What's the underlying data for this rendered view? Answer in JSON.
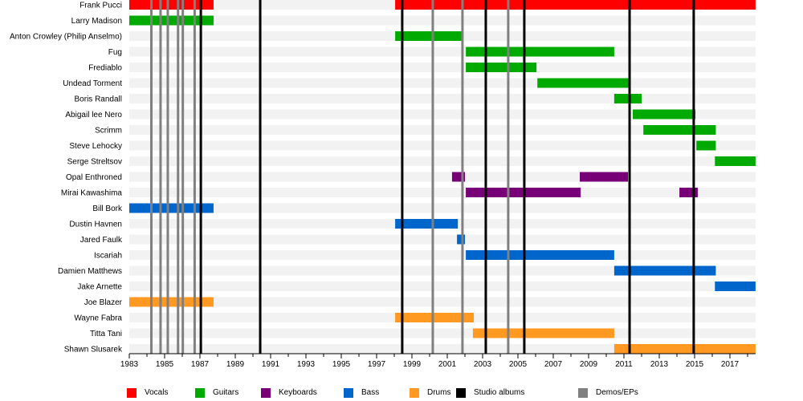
{
  "chart_data": {
    "type": "timeline",
    "title": "",
    "xlim": [
      1983,
      2018.45
    ],
    "x_ticks": [
      1983,
      1985,
      1987,
      1989,
      1991,
      1993,
      1995,
      1997,
      1999,
      2001,
      2003,
      2005,
      2007,
      2009,
      2011,
      2013,
      2015,
      2017
    ],
    "x_tick_labels": [
      "1983",
      "1985",
      "1987",
      "1989",
      "1991",
      "1993",
      "1995",
      "1997",
      "1999",
      "2001",
      "2003",
      "2005",
      "2007",
      "2009",
      "2011",
      "2013",
      "2015",
      "2017"
    ],
    "roles": {
      "vocals": {
        "label": "Vocals",
        "color": "#ff0000"
      },
      "guitars": {
        "label": "Guitars",
        "color": "#00aa00"
      },
      "keyboards": {
        "label": "Keyboards",
        "color": "#770077"
      },
      "bass": {
        "label": "Bass",
        "color": "#0066cc"
      },
      "drums": {
        "label": "Drums",
        "color": "#ff9922"
      },
      "studio": {
        "label": "Studio albums",
        "color": "#000000"
      },
      "demos": {
        "label": "Demos/EPs",
        "color": "#808080"
      }
    },
    "legend": [
      "vocals",
      "guitars",
      "keyboards",
      "bass",
      "drums",
      "studio",
      "demos"
    ],
    "members": [
      {
        "name": "Frank Pucci",
        "role": "vocals",
        "periods": [
          [
            1983,
            1987.77
          ],
          [
            1998.05,
            2018.45
          ]
        ]
      },
      {
        "name": "Larry Madison",
        "role": "guitars",
        "periods": [
          [
            1983,
            1987.77
          ]
        ]
      },
      {
        "name": "Anton Crowley (Philip Anselmo)",
        "role": "guitars",
        "periods": [
          [
            1998.05,
            2001.91
          ]
        ]
      },
      {
        "name": "Fug",
        "role": "guitars",
        "periods": [
          [
            2002.05,
            2010.45
          ]
        ]
      },
      {
        "name": "Frediablo",
        "role": "guitars",
        "periods": [
          [
            2002.05,
            2006.05
          ]
        ]
      },
      {
        "name": "Undead Torment",
        "role": "guitars",
        "periods": [
          [
            2006.1,
            2011.35
          ]
        ]
      },
      {
        "name": "Boris Randall",
        "role": "guitars",
        "periods": [
          [
            2010.45,
            2012.0
          ]
        ]
      },
      {
        "name": "Abigail lee Nero",
        "role": "guitars",
        "periods": [
          [
            2011.5,
            2015.05
          ]
        ]
      },
      {
        "name": "Scrimm",
        "role": "guitars",
        "periods": [
          [
            2012.1,
            2016.2
          ]
        ]
      },
      {
        "name": "Steve Lehocky",
        "role": "guitars",
        "periods": [
          [
            2015.1,
            2016.2
          ]
        ]
      },
      {
        "name": "Serge Streltsov",
        "role": "guitars",
        "periods": [
          [
            2016.15,
            2018.45
          ]
        ]
      },
      {
        "name": "Opal Enthroned",
        "role": "keyboards",
        "periods": [
          [
            2001.27,
            2002.0
          ],
          [
            2008.5,
            2011.23
          ]
        ]
      },
      {
        "name": "Mirai Kawashima",
        "role": "keyboards",
        "periods": [
          [
            2002.05,
            2008.55
          ],
          [
            2014.14,
            2015.18
          ]
        ]
      },
      {
        "name": "Bill Bork",
        "role": "bass",
        "periods": [
          [
            1983,
            1987.77
          ]
        ]
      },
      {
        "name": "Dustin Havnen",
        "role": "bass",
        "periods": [
          [
            1998.05,
            2001.6
          ]
        ]
      },
      {
        "name": "Jared Faulk",
        "role": "bass",
        "periods": [
          [
            2001.55,
            2002.0
          ]
        ]
      },
      {
        "name": "Iscariah",
        "role": "bass",
        "periods": [
          [
            2002.05,
            2010.45
          ]
        ]
      },
      {
        "name": "Damien Matthews",
        "role": "bass",
        "periods": [
          [
            2010.45,
            2016.2
          ]
        ]
      },
      {
        "name": "Jake Arnette",
        "role": "bass",
        "periods": [
          [
            2016.15,
            2018.45
          ]
        ]
      },
      {
        "name": "Joe Blazer",
        "role": "drums",
        "periods": [
          [
            1983,
            1987.77
          ]
        ]
      },
      {
        "name": "Wayne Fabra",
        "role": "drums",
        "periods": [
          [
            1998.05,
            2002.5
          ]
        ]
      },
      {
        "name": "Titta Tani",
        "role": "drums",
        "periods": [
          [
            2002.45,
            2010.45
          ]
        ]
      },
      {
        "name": "Shawn Slusarek",
        "role": "drums",
        "periods": [
          [
            2010.45,
            2018.45
          ]
        ]
      }
    ],
    "studio_albums": [
      1987.05,
      1990.41,
      1998.45,
      2003.18,
      2005.36,
      2011.32,
      2014.95
    ],
    "demos_eps": [
      1984.25,
      1984.77,
      1985.18,
      1985.76,
      1986.03,
      1986.7,
      2000.18,
      2001.86,
      2004.45
    ]
  }
}
